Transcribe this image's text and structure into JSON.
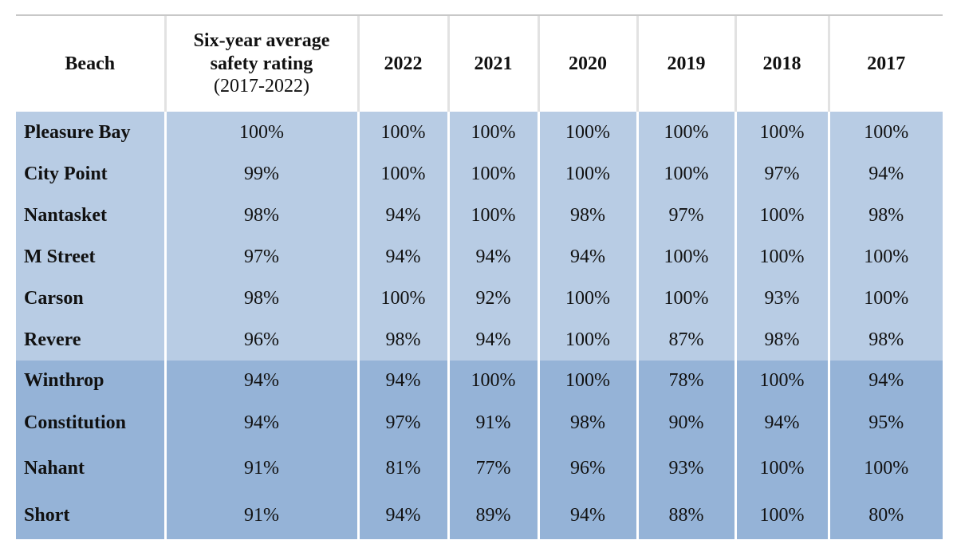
{
  "table": {
    "header": [
      "Beach",
      "Six-year average safety rating",
      "2022",
      "2021",
      "2020",
      "2019",
      "2018",
      "2017"
    ],
    "header_note": "(2017-2022)",
    "rows": [
      [
        "Pleasure Bay",
        "100%",
        "100%",
        "100%",
        "100%",
        "100%",
        "100%",
        "100%"
      ],
      [
        "City Point",
        "99%",
        "100%",
        "100%",
        "100%",
        "100%",
        "97%",
        "94%"
      ],
      [
        "Nantasket",
        "98%",
        "94%",
        "100%",
        "98%",
        "97%",
        "100%",
        "98%"
      ],
      [
        "M Street",
        "97%",
        "94%",
        "94%",
        "94%",
        "100%",
        "100%",
        "100%"
      ],
      [
        "Carson",
        "98%",
        "100%",
        "92%",
        "100%",
        "100%",
        "93%",
        "100%"
      ],
      [
        "Revere",
        "96%",
        "98%",
        "94%",
        "100%",
        "87%",
        "98%",
        "98%"
      ],
      [
        "Winthrop",
        "94%",
        "94%",
        "100%",
        "100%",
        "78%",
        "100%",
        "94%"
      ],
      [
        "Constitution",
        "94%",
        "97%",
        "91%",
        "98%",
        "90%",
        "94%",
        "95%"
      ],
      [
        "Nahant",
        "91%",
        "81%",
        "77%",
        "96%",
        "93%",
        "100%",
        "100%"
      ],
      [
        "Short",
        "91%",
        "94%",
        "89%",
        "94%",
        "88%",
        "100%",
        "80%"
      ]
    ]
  }
}
